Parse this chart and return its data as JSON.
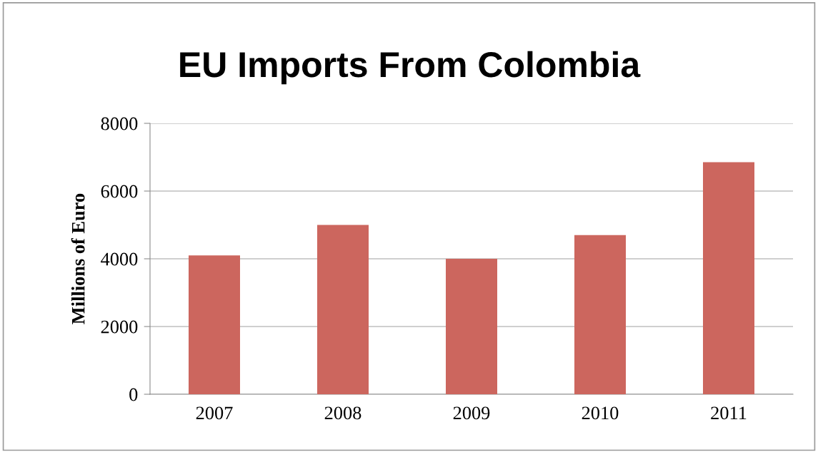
{
  "chart_data": {
    "type": "bar",
    "title": "EU Imports From Colombia",
    "ylabel": "Millions of Euro",
    "categories": [
      "2007",
      "2008",
      "2009",
      "2010",
      "2011"
    ],
    "values": [
      4100,
      5000,
      4000,
      4700,
      6850
    ],
    "color": "#cc665e",
    "ylim": [
      0,
      8000
    ],
    "yticks": [
      0,
      2000,
      4000,
      6000,
      8000
    ],
    "grid": "y",
    "legend": false
  }
}
